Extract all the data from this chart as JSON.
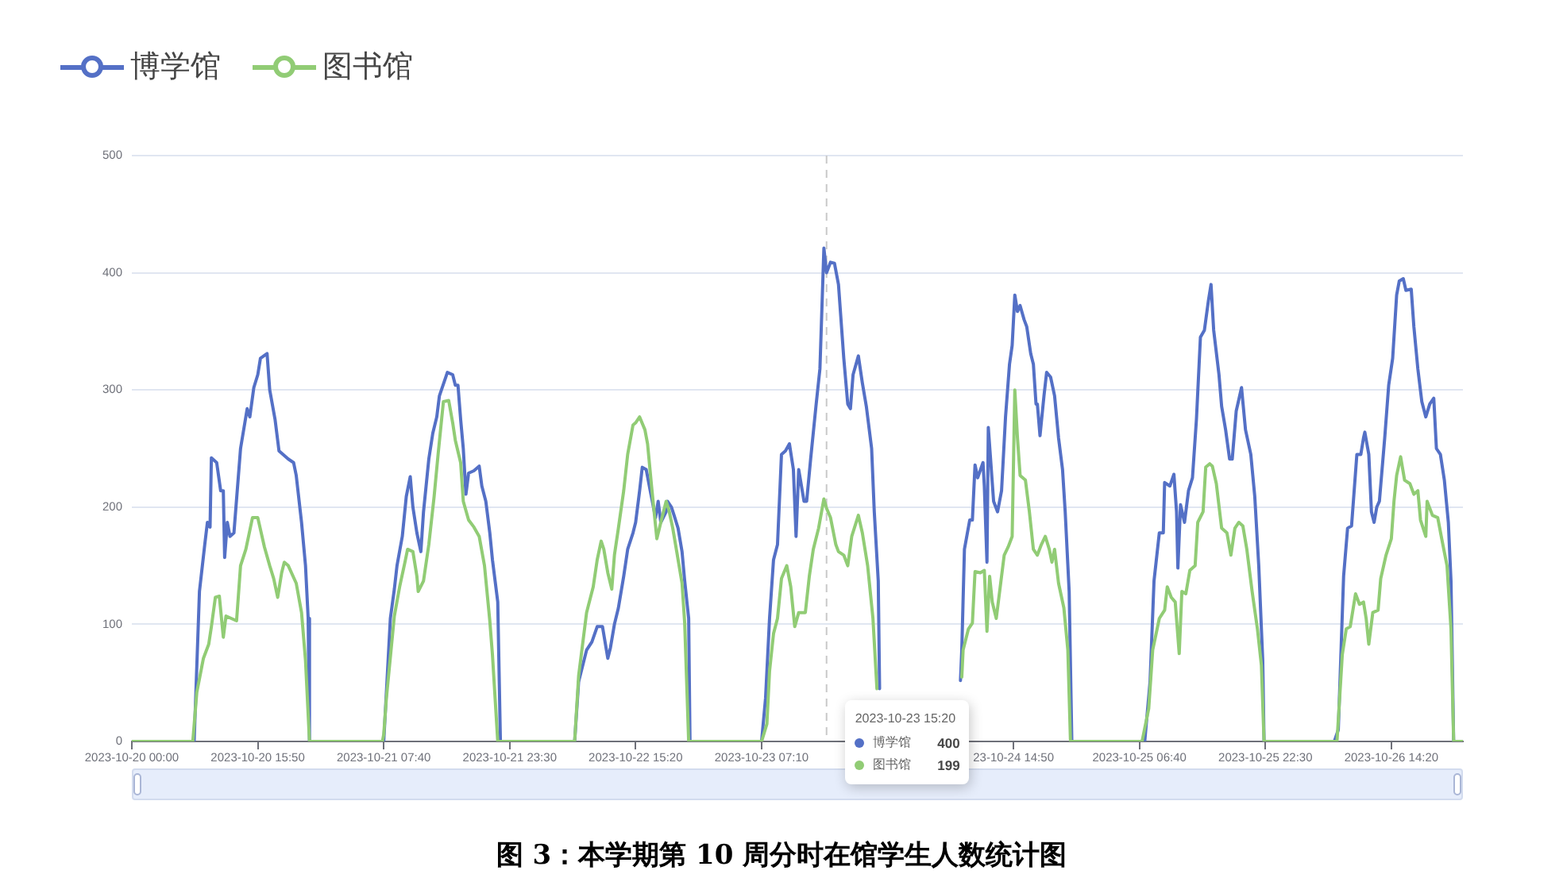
{
  "chart_data": {
    "type": "line",
    "title": "图 3：本学期第 10 周分时在馆学生人数统计图",
    "series": [
      {
        "name": "博学馆",
        "color": "#5470c6",
        "x": [
          "2023-10-20T00:00",
          "2023-10-20T07:50",
          "2023-10-20T08:30",
          "2023-10-20T09:10",
          "2023-10-20T09:30",
          "2023-10-20T09:50",
          "2023-10-20T10:00",
          "2023-10-20T10:40",
          "2023-10-20T11:10",
          "2023-10-20T11:30",
          "2023-10-20T11:40",
          "2023-10-20T12:00",
          "2023-10-20T12:20",
          "2023-10-20T12:50",
          "2023-10-20T13:40",
          "2023-10-20T14:30",
          "2023-10-20T14:50",
          "2023-10-20T15:20",
          "2023-10-20T15:50",
          "2023-10-20T16:10",
          "2023-10-20T17:00",
          "2023-10-20T17:20",
          "2023-10-20T18:00",
          "2023-10-20T18:30",
          "2023-10-20T19:40",
          "2023-10-20T20:20",
          "2023-10-20T20:40",
          "2023-10-20T21:20",
          "2023-10-20T21:50",
          "2023-10-20T22:10",
          "2023-10-20T22:20",
          "2023-10-21T07:40",
          "2023-10-21T08:30",
          "2023-10-21T09:00",
          "2023-10-21T09:20",
          "2023-10-21T10:00",
          "2023-10-21T10:30",
          "2023-10-21T11:00",
          "2023-10-21T11:20",
          "2023-10-21T11:50",
          "2023-10-21T12:20",
          "2023-10-21T12:40",
          "2023-10-21T13:20",
          "2023-10-21T13:50",
          "2023-10-21T14:20",
          "2023-10-21T14:40",
          "2023-10-21T15:40",
          "2023-10-21T16:20",
          "2023-10-21T16:40",
          "2023-10-21T17:00",
          "2023-10-21T17:20",
          "2023-10-21T17:40",
          "2023-10-21T18:00",
          "2023-10-21T18:20",
          "2023-10-21T19:00",
          "2023-10-21T19:40",
          "2023-10-21T20:00",
          "2023-10-21T20:30",
          "2023-10-21T21:00",
          "2023-10-21T21:20",
          "2023-10-21T22:00",
          "2023-10-21T22:20",
          "2023-10-22T07:40",
          "2023-10-22T08:10",
          "2023-10-22T09:10",
          "2023-10-22T09:50",
          "2023-10-22T10:30",
          "2023-10-22T11:10",
          "2023-10-22T11:50",
          "2023-10-22T12:10",
          "2023-10-22T12:40",
          "2023-10-22T13:10",
          "2023-10-22T13:50",
          "2023-10-22T14:20",
          "2023-10-22T15:00",
          "2023-10-22T15:20",
          "2023-10-22T15:50",
          "2023-10-22T16:10",
          "2023-10-22T16:40",
          "2023-10-22T17:10",
          "2023-10-22T17:50",
          "2023-10-22T18:10",
          "2023-10-22T18:30",
          "2023-10-22T19:10",
          "2023-10-22T19:20",
          "2023-10-22T19:50",
          "2023-10-22T20:10",
          "2023-10-22T20:40",
          "2023-10-22T21:10",
          "2023-10-22T21:30",
          "2023-10-22T22:00",
          "2023-10-22T22:10",
          "2023-10-23T07:10",
          "2023-10-23T07:40",
          "2023-10-23T08:10",
          "2023-10-23T08:40",
          "2023-10-23T09:10",
          "2023-10-23T09:40",
          "2023-10-23T10:10",
          "2023-10-23T10:40",
          "2023-10-23T11:10",
          "2023-10-23T11:30",
          "2023-10-23T11:50",
          "2023-10-23T12:30",
          "2023-10-23T12:50",
          "2023-10-23T13:20",
          "2023-10-23T14:00",
          "2023-10-23T14:30",
          "2023-10-23T15:00",
          "2023-10-23T15:20",
          "2023-10-23T15:50",
          "2023-10-23T16:20",
          "2023-10-23T16:50",
          "2023-10-23T17:30",
          "2023-10-23T18:00",
          "2023-10-23T18:20",
          "2023-10-23T18:40",
          "2023-10-23T19:20",
          "2023-10-23T19:50",
          "2023-10-23T20:20",
          "2023-10-23T21:00",
          "2023-10-23T21:20",
          "2023-10-23T21:50",
          "2023-10-23T22:00",
          "2023-10-23T22:10",
          "2023-10-24T07:50",
          "2023-10-24T08:10",
          "2023-10-24T08:20",
          "2023-10-24T08:40",
          "2023-10-24T09:20",
          "2023-10-24T09:40",
          "2023-10-24T10:00",
          "2023-10-24T10:20",
          "2023-10-24T11:00",
          "2023-10-24T11:10",
          "2023-10-24T11:30",
          "2023-10-24T11:40",
          "2023-10-24T12:20",
          "2023-10-24T12:50",
          "2023-10-24T13:20",
          "2023-10-24T13:50",
          "2023-10-24T14:20",
          "2023-10-24T14:40",
          "2023-10-24T15:00",
          "2023-10-24T15:20",
          "2023-10-24T15:40",
          "2023-10-24T16:10",
          "2023-10-24T16:30",
          "2023-10-24T17:00",
          "2023-10-24T17:20",
          "2023-10-24T17:40",
          "2023-10-24T17:50",
          "2023-10-24T18:10",
          "2023-10-24T18:40",
          "2023-10-24T19:00",
          "2023-10-24T19:30",
          "2023-10-24T20:00",
          "2023-10-24T20:30",
          "2023-10-24T21:00",
          "2023-10-24T21:20",
          "2023-10-24T21:50",
          "2023-10-24T22:10",
          "2023-10-25T07:20",
          "2023-10-25T08:00",
          "2023-10-25T08:30",
          "2023-10-25T09:10",
          "2023-10-25T09:40",
          "2023-10-25T09:50",
          "2023-10-25T10:30",
          "2023-10-25T11:00",
          "2023-10-25T11:20",
          "2023-10-25T11:30",
          "2023-10-25T11:50",
          "2023-10-25T12:20",
          "2023-10-25T12:50",
          "2023-10-25T13:20",
          "2023-10-25T13:50",
          "2023-10-25T14:20",
          "2023-10-25T14:50",
          "2023-10-25T15:20",
          "2023-10-25T15:40",
          "2023-10-25T16:00",
          "2023-10-25T16:40",
          "2023-10-25T17:00",
          "2023-10-25T17:30",
          "2023-10-25T18:00",
          "2023-10-25T18:20",
          "2023-10-25T18:50",
          "2023-10-25T19:30",
          "2023-10-25T20:00",
          "2023-10-25T20:40",
          "2023-10-25T21:10",
          "2023-10-25T21:40",
          "2023-10-25T22:10",
          "2023-10-25T22:20",
          "2023-10-26T07:10",
          "2023-10-26T07:40",
          "2023-10-26T08:20",
          "2023-10-26T08:50",
          "2023-10-26T09:20",
          "2023-10-26T10:00",
          "2023-10-26T10:30",
          "2023-10-26T10:50",
          "2023-10-26T11:00",
          "2023-10-26T11:30",
          "2023-10-26T11:50",
          "2023-10-26T12:10",
          "2023-10-26T12:30",
          "2023-10-26T12:50",
          "2023-10-26T13:30",
          "2023-10-26T14:00",
          "2023-10-26T14:30",
          "2023-10-26T15:00",
          "2023-10-26T15:20",
          "2023-10-26T15:50",
          "2023-10-26T16:10",
          "2023-10-26T16:50",
          "2023-10-26T17:10",
          "2023-10-26T17:40",
          "2023-10-26T18:10",
          "2023-10-26T18:40",
          "2023-10-26T19:10",
          "2023-10-26T19:40",
          "2023-10-26T20:00",
          "2023-10-26T20:30",
          "2023-10-26T21:00",
          "2023-10-26T21:30",
          "2023-10-26T21:50",
          "2023-10-26T22:10",
          "2023-10-26T23:20"
        ],
        "values": [
          0,
          0,
          128,
          168,
          187,
          183,
          242,
          238,
          214,
          214,
          157,
          187,
          175,
          178,
          250,
          284,
          277,
          302,
          313,
          327,
          331,
          300,
          275,
          248,
          241,
          238,
          227,
          187,
          150,
          105,
          0,
          0,
          105,
          130,
          150,
          175,
          209,
          226,
          200,
          178,
          162,
          196,
          241,
          263,
          277,
          295,
          315,
          313,
          304,
          304,
          275,
          250,
          211,
          229,
          231,
          235,
          218,
          205,
          178,
          155,
          119,
          0,
          0,
          51,
          78,
          85,
          98,
          98,
          71,
          80,
          100,
          114,
          141,
          164,
          178,
          187,
          214,
          234,
          232,
          214,
          191,
          205,
          187,
          196,
          205,
          200,
          193,
          182,
          162,
          137,
          105,
          0,
          0,
          37,
          105,
          155,
          168,
          245,
          248,
          254,
          232,
          175,
          232,
          205,
          205,
          241,
          286,
          318,
          421,
          400,
          409,
          408,
          390,
          327,
          288,
          284,
          313,
          329,
          306,
          286,
          250,
          196,
          137,
          45,
          null,
          null,
          52,
          78,
          164,
          189,
          189,
          236,
          225,
          238,
          218,
          153,
          268,
          205,
          196,
          214,
          277,
          322,
          338,
          381,
          367,
          372,
          360,
          354,
          331,
          322,
          288,
          288,
          261,
          295,
          315,
          311,
          295,
          259,
          232,
          196,
          128,
          0,
          0,
          51,
          137,
          178,
          178,
          221,
          218,
          228,
          196,
          148,
          202,
          187,
          214,
          225,
          275,
          345,
          351,
          376,
          390,
          351,
          313,
          286,
          266,
          241,
          241,
          282,
          302,
          266,
          245,
          209,
          150,
          69,
          0,
          0,
          10,
          141,
          182,
          184,
          245,
          245,
          259,
          264,
          245,
          196,
          187,
          200,
          205,
          259,
          304,
          327,
          381,
          393,
          395,
          385,
          386,
          354,
          318,
          290,
          277,
          288,
          293,
          250,
          245,
          223,
          187,
          137,
          0,
          0
        ]
      },
      {
        "name": "图书馆",
        "color": "#91cc75",
        "x": [
          "2023-10-20T00:00",
          "2023-10-20T07:40",
          "2023-10-20T08:10",
          "2023-10-20T09:00",
          "2023-10-20T09:40",
          "2023-10-20T10:00",
          "2023-10-20T10:30",
          "2023-10-20T11:00",
          "2023-10-20T11:30",
          "2023-10-20T11:50",
          "2023-10-20T12:30",
          "2023-10-20T13:10",
          "2023-10-20T13:40",
          "2023-10-20T14:20",
          "2023-10-20T15:10",
          "2023-10-20T15:50",
          "2023-10-20T16:40",
          "2023-10-20T17:20",
          "2023-10-20T17:50",
          "2023-10-20T18:20",
          "2023-10-20T18:50",
          "2023-10-20T19:10",
          "2023-10-20T19:40",
          "2023-10-20T20:40",
          "2023-10-20T21:20",
          "2023-10-20T21:50",
          "2023-10-20T22:20",
          "2023-10-21T07:30",
          "2023-10-21T07:40",
          "2023-10-21T08:00",
          "2023-10-21T09:00",
          "2023-10-21T09:40",
          "2023-10-21T10:20",
          "2023-10-21T10:40",
          "2023-10-21T11:20",
          "2023-10-21T11:50",
          "2023-10-21T12:00",
          "2023-10-21T12:40",
          "2023-10-21T13:20",
          "2023-10-21T14:00",
          "2023-10-21T14:30",
          "2023-10-21T15:10",
          "2023-10-21T15:50",
          "2023-10-21T16:20",
          "2023-10-21T16:40",
          "2023-10-21T17:20",
          "2023-10-21T17:40",
          "2023-10-21T18:20",
          "2023-10-21T19:00",
          "2023-10-21T19:40",
          "2023-10-21T20:20",
          "2023-10-21T21:00",
          "2023-10-21T21:20",
          "2023-10-21T22:00",
          "2023-10-22T07:40",
          "2023-10-22T08:10",
          "2023-10-22T09:10",
          "2023-10-22T10:00",
          "2023-10-22T10:30",
          "2023-10-22T11:00",
          "2023-10-22T11:20",
          "2023-10-22T11:50",
          "2023-10-22T12:20",
          "2023-10-22T12:40",
          "2023-10-22T13:10",
          "2023-10-22T13:50",
          "2023-10-22T14:20",
          "2023-10-22T15:00",
          "2023-10-22T15:20",
          "2023-10-22T15:50",
          "2023-10-22T16:30",
          "2023-10-22T16:50",
          "2023-10-22T17:20",
          "2023-10-22T18:00",
          "2023-10-22T18:30",
          "2023-10-22T19:10",
          "2023-10-22T19:30",
          "2023-10-22T20:00",
          "2023-10-22T20:30",
          "2023-10-22T21:10",
          "2023-10-22T21:30",
          "2023-10-22T22:00",
          "2023-10-23T07:10",
          "2023-10-23T07:50",
          "2023-10-23T08:10",
          "2023-10-23T08:40",
          "2023-10-23T09:10",
          "2023-10-23T09:40",
          "2023-10-23T10:20",
          "2023-10-23T10:50",
          "2023-10-23T11:20",
          "2023-10-23T11:50",
          "2023-10-23T12:40",
          "2023-10-23T13:10",
          "2023-10-23T13:40",
          "2023-10-23T14:20",
          "2023-10-23T15:00",
          "2023-10-23T15:20",
          "2023-10-23T15:50",
          "2023-10-23T16:30",
          "2023-10-23T16:50",
          "2023-10-23T17:30",
          "2023-10-23T18:00",
          "2023-10-23T18:30",
          "2023-10-23T19:20",
          "2023-10-23T19:50",
          "2023-10-23T20:30",
          "2023-10-23T21:10",
          "2023-10-23T21:40",
          "2023-10-23T21:50",
          "2023-10-24T08:00",
          "2023-10-24T08:20",
          "2023-10-24T08:30",
          "2023-10-24T09:10",
          "2023-10-24T09:40",
          "2023-10-24T10:00",
          "2023-10-24T10:40",
          "2023-10-24T11:10",
          "2023-10-24T11:30",
          "2023-10-24T11:50",
          "2023-10-24T12:10",
          "2023-10-24T12:40",
          "2023-10-24T13:10",
          "2023-10-24T13:40",
          "2023-10-24T14:10",
          "2023-10-24T14:40",
          "2023-10-24T15:00",
          "2023-10-24T15:20",
          "2023-10-24T15:40",
          "2023-10-24T16:20",
          "2023-10-24T16:50",
          "2023-10-24T17:20",
          "2023-10-24T17:50",
          "2023-10-24T18:20",
          "2023-10-24T18:50",
          "2023-10-24T19:20",
          "2023-10-24T19:40",
          "2023-10-24T20:00",
          "2023-10-24T20:30",
          "2023-10-24T21:10",
          "2023-10-24T21:40",
          "2023-10-24T22:00",
          "2023-10-25T07:00",
          "2023-10-25T07:50",
          "2023-10-25T08:20",
          "2023-10-25T09:10",
          "2023-10-25T09:50",
          "2023-10-25T10:10",
          "2023-10-25T10:40",
          "2023-10-25T11:10",
          "2023-10-25T11:40",
          "2023-10-25T12:00",
          "2023-10-25T12:30",
          "2023-10-25T13:00",
          "2023-10-25T13:40",
          "2023-10-25T14:00",
          "2023-10-25T14:40",
          "2023-10-25T15:00",
          "2023-10-25T15:30",
          "2023-10-25T15:50",
          "2023-10-25T16:20",
          "2023-10-25T17:00",
          "2023-10-25T17:40",
          "2023-10-25T18:10",
          "2023-10-25T18:40",
          "2023-10-25T19:10",
          "2023-10-25T19:40",
          "2023-10-25T20:10",
          "2023-10-25T20:50",
          "2023-10-25T21:30",
          "2023-10-25T22:00",
          "2023-10-25T22:20",
          "2023-10-26T07:30",
          "2023-10-26T08:10",
          "2023-10-26T08:40",
          "2023-10-26T09:10",
          "2023-10-26T09:50",
          "2023-10-26T10:20",
          "2023-10-26T10:50",
          "2023-10-26T11:10",
          "2023-10-26T11:30",
          "2023-10-26T12:00",
          "2023-10-26T12:40",
          "2023-10-26T13:00",
          "2023-10-26T13:40",
          "2023-10-26T14:20",
          "2023-10-26T14:40",
          "2023-10-26T15:00",
          "2023-10-26T15:30",
          "2023-10-26T16:00",
          "2023-10-26T16:40",
          "2023-10-26T17:10",
          "2023-10-26T17:40",
          "2023-10-26T18:00",
          "2023-10-26T18:40",
          "2023-10-26T18:50",
          "2023-10-26T19:30",
          "2023-10-26T20:10",
          "2023-10-26T20:40",
          "2023-10-26T21:20",
          "2023-10-26T21:50",
          "2023-10-26T22:10",
          "2023-10-26T23:20"
        ],
        "values": [
          0,
          0,
          42,
          71,
          83,
          98,
          123,
          124,
          89,
          107,
          105,
          103,
          150,
          164,
          191,
          191,
          166,
          150,
          139,
          123,
          144,
          153,
          150,
          135,
          110,
          69,
          0,
          0,
          6,
          37,
          107,
          132,
          153,
          164,
          162,
          141,
          128,
          137,
          168,
          209,
          245,
          290,
          291,
          272,
          257,
          238,
          205,
          189,
          183,
          175,
          150,
          103,
          74,
          0,
          0,
          56,
          110,
          132,
          155,
          171,
          164,
          144,
          130,
          159,
          182,
          214,
          245,
          270,
          272,
          277,
          266,
          254,
          218,
          173,
          187,
          205,
          198,
          182,
          162,
          135,
          101,
          0,
          0,
          15,
          60,
          92,
          105,
          139,
          150,
          132,
          98,
          110,
          110,
          141,
          164,
          182,
          207,
          199,
          191,
          168,
          162,
          159,
          150,
          175,
          193,
          178,
          150,
          105,
          45,
          null,
          null,
          55,
          78,
          96,
          101,
          145,
          144,
          146,
          94,
          141,
          119,
          105,
          132,
          159,
          166,
          175,
          300,
          259,
          227,
          223,
          196,
          164,
          159,
          168,
          175,
          164,
          153,
          164,
          135,
          114,
          78,
          0,
          0,
          28,
          78,
          105,
          112,
          132,
          123,
          119,
          75,
          128,
          126,
          146,
          150,
          187,
          196,
          234,
          237,
          235,
          220,
          182,
          178,
          159,
          182,
          187,
          184,
          164,
          128,
          96,
          65,
          0,
          0,
          74,
          96,
          98,
          126,
          117,
          119,
          105,
          83,
          110,
          112,
          139,
          159,
          173,
          205,
          227,
          243,
          223,
          220,
          211,
          214,
          189,
          175,
          205,
          193,
          191,
          173,
          150,
          96,
          0,
          0
        ]
      }
    ],
    "xlim": [
      "2023-10-20T00:00",
      "2023-10-26T23:20"
    ],
    "xticks": [
      {
        "value": "2023-10-20T00:00",
        "label": "2023-10-20 00:00"
      },
      {
        "value": "2023-10-20T15:50",
        "label": "2023-10-20 15:50"
      },
      {
        "value": "2023-10-21T07:40",
        "label": "2023-10-21 07:40"
      },
      {
        "value": "2023-10-21T23:30",
        "label": "2023-10-21 23:30"
      },
      {
        "value": "2023-10-22T15:20",
        "label": "2023-10-22 15:20"
      },
      {
        "value": "2023-10-23T07:10",
        "label": "2023-10-23 07:10"
      },
      {
        "value": "2023-10-23T23:00",
        "label": null
      },
      {
        "value": "2023-10-24T14:50",
        "label": "23-10-24 14:50"
      },
      {
        "value": "2023-10-25T06:40",
        "label": "2023-10-25 06:40"
      },
      {
        "value": "2023-10-25T22:30",
        "label": "2023-10-25 22:30"
      },
      {
        "value": "2023-10-26T14:20",
        "label": "2023-10-26 14:20"
      }
    ],
    "ylim": [
      0,
      500
    ],
    "yticks": [
      0,
      100,
      200,
      300,
      400,
      500
    ],
    "grid": "y",
    "legend": "top left",
    "marker": "none",
    "line_style": "solid",
    "ref_lines": [
      {
        "axis": "x",
        "value": "2023-10-23T15:20",
        "label": "2023-10-23 15:20",
        "color": "#c8c8c8",
        "line_style": "dashed"
      }
    ],
    "annotations": [
      "400",
      "199"
    ]
  }
}
